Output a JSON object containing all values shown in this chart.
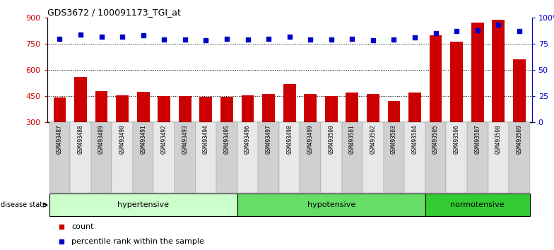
{
  "title": "GDS3672 / 100091173_TGI_at",
  "categories": [
    "GSM493487",
    "GSM493488",
    "GSM493489",
    "GSM493490",
    "GSM493491",
    "GSM493492",
    "GSM493493",
    "GSM493494",
    "GSM493495",
    "GSM493496",
    "GSM493497",
    "GSM493498",
    "GSM493499",
    "GSM493500",
    "GSM493501",
    "GSM493502",
    "GSM493503",
    "GSM493504",
    "GSM493505",
    "GSM493506",
    "GSM493507",
    "GSM493508",
    "GSM493509"
  ],
  "counts": [
    443,
    562,
    480,
    455,
    475,
    451,
    450,
    449,
    449,
    455,
    463,
    520,
    463,
    450,
    473,
    462,
    421,
    470,
    800,
    760,
    870,
    885,
    660
  ],
  "percentiles": [
    80,
    84,
    82,
    82,
    83,
    79,
    79,
    78,
    80,
    79,
    80,
    82,
    79,
    79,
    80,
    78,
    79,
    81,
    85,
    87,
    88,
    93,
    87
  ],
  "groups": [
    {
      "label": "hypertensive",
      "start": 0,
      "end": 9
    },
    {
      "label": "hypotensive",
      "start": 9,
      "end": 18
    },
    {
      "label": "normotensive",
      "start": 18,
      "end": 23
    }
  ],
  "group_colors": [
    "#ccffcc",
    "#66dd66",
    "#33cc33"
  ],
  "bar_color": "#cc0000",
  "dot_color": "#0000cc",
  "ylim_left": [
    300,
    900
  ],
  "ylim_right": [
    0,
    100
  ],
  "yticks_left": [
    300,
    450,
    600,
    750,
    900
  ],
  "yticks_right": [
    0,
    25,
    50,
    75,
    100
  ],
  "ytick_labels_right": [
    "0",
    "25",
    "50",
    "75",
    "100%"
  ],
  "plot_bg": "#ffffff",
  "label_bg_odd": "#d0d0d0",
  "label_bg_even": "#e8e8e8",
  "disease_state_label": "disease state",
  "legend_count": "count",
  "legend_percentile": "percentile rank within the sample"
}
